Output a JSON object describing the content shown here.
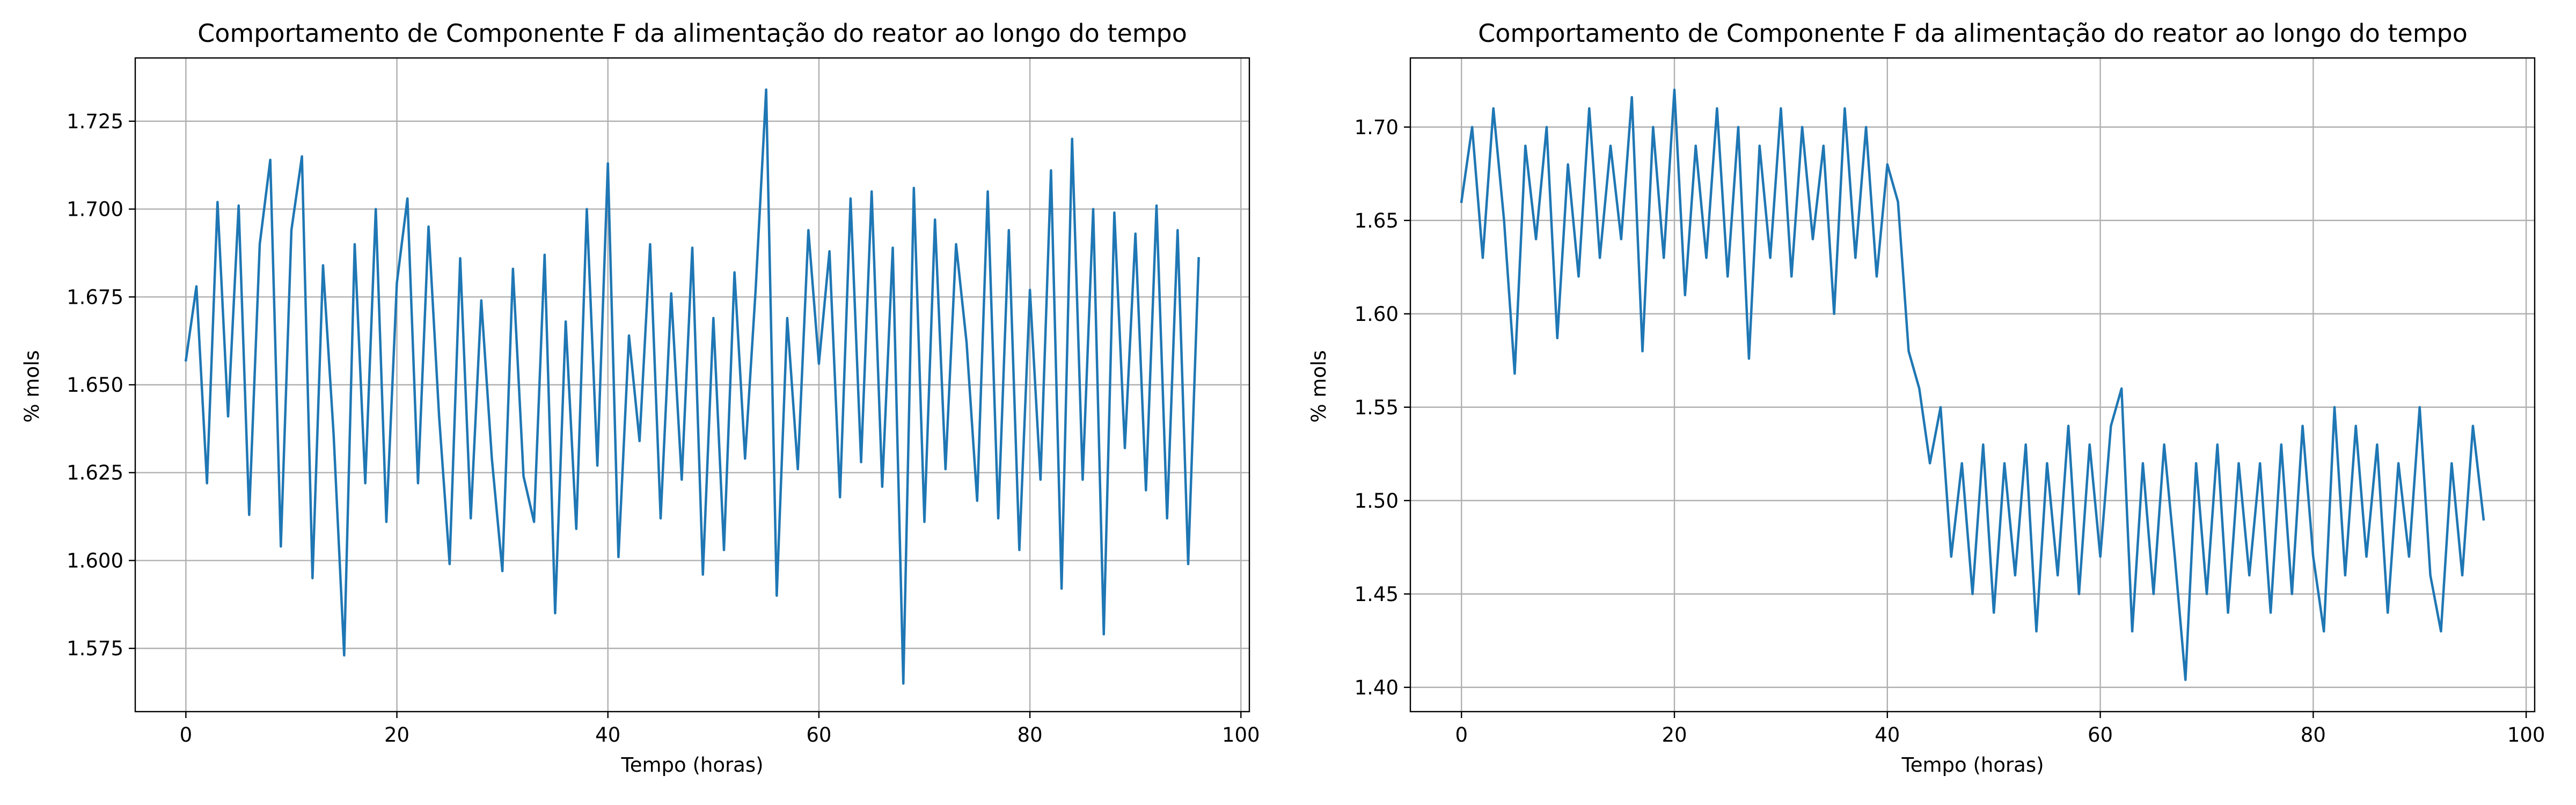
{
  "colors": {
    "series": "#1f77b4",
    "grid": "#b0b0b0",
    "axis": "#000000"
  },
  "chart_data": [
    {
      "type": "line",
      "title": "Comportamento de Componente F da alimentação do reator ao longo do tempo",
      "xlabel": "Tempo (horas)",
      "ylabel": "% mols",
      "xlim": [
        -4.8,
        100.8
      ],
      "ylim": [
        1.557,
        1.743
      ],
      "xticks": [
        0,
        20,
        40,
        60,
        80,
        100
      ],
      "yticks": [
        1.575,
        1.6,
        1.625,
        1.65,
        1.675,
        1.7,
        1.725
      ],
      "xtick_labels": [
        "0",
        "20",
        "40",
        "60",
        "80",
        "100"
      ],
      "ytick_labels": [
        "1.575",
        "1.600",
        "1.625",
        "1.650",
        "1.675",
        "1.700",
        "1.725"
      ],
      "grid": true,
      "series": [
        {
          "x": [
            0,
            1,
            2,
            3,
            4,
            5,
            6,
            7,
            8,
            9,
            10,
            11,
            12,
            13,
            14,
            15,
            16,
            17,
            18,
            19,
            20,
            21,
            22,
            23,
            24,
            25,
            26,
            27,
            28,
            29,
            30,
            31,
            32,
            33,
            34,
            35,
            36,
            37,
            38,
            39,
            40,
            41,
            42,
            43,
            44,
            45,
            46,
            47,
            48,
            49,
            50,
            51,
            52,
            53,
            54,
            55,
            56,
            57,
            58,
            59,
            60,
            61,
            62,
            63,
            64,
            65,
            66,
            67,
            68,
            69,
            70,
            71,
            72,
            73,
            74,
            75,
            76,
            77,
            78,
            79,
            80,
            81,
            82,
            83,
            84,
            85,
            86,
            87,
            88,
            89,
            90,
            91,
            92,
            93,
            94,
            95,
            96
          ],
          "y": [
            1.657,
            1.678,
            1.622,
            1.702,
            1.641,
            1.701,
            1.613,
            1.69,
            1.714,
            1.604,
            1.694,
            1.715,
            1.595,
            1.684,
            1.636,
            1.573,
            1.69,
            1.622,
            1.7,
            1.611,
            1.679,
            1.703,
            1.622,
            1.695,
            1.641,
            1.599,
            1.686,
            1.612,
            1.674,
            1.629,
            1.597,
            1.683,
            1.624,
            1.611,
            1.687,
            1.585,
            1.668,
            1.609,
            1.7,
            1.627,
            1.713,
            1.601,
            1.664,
            1.634,
            1.69,
            1.612,
            1.676,
            1.623,
            1.689,
            1.596,
            1.669,
            1.603,
            1.682,
            1.629,
            1.677,
            1.734,
            1.59,
            1.669,
            1.626,
            1.694,
            1.656,
            1.688,
            1.618,
            1.703,
            1.628,
            1.705,
            1.621,
            1.689,
            1.565,
            1.706,
            1.611,
            1.697,
            1.626,
            1.69,
            1.662,
            1.617,
            1.705,
            1.612,
            1.694,
            1.603,
            1.677,
            1.623,
            1.711,
            1.592,
            1.72,
            1.623,
            1.7,
            1.579,
            1.699,
            1.632,
            1.693,
            1.62,
            1.701,
            1.612,
            1.694,
            1.599,
            1.686
          ]
        }
      ]
    },
    {
      "type": "line",
      "title": "Comportamento de Componente F da alimentação do reator ao longo do tempo",
      "xlabel": "Tempo (horas)",
      "ylabel": "% mols",
      "xlim": [
        -4.8,
        100.8
      ],
      "ylim": [
        1.387,
        1.737
      ],
      "xticks": [
        0,
        20,
        40,
        60,
        80,
        100
      ],
      "yticks": [
        1.4,
        1.45,
        1.5,
        1.55,
        1.6,
        1.65,
        1.7
      ],
      "xtick_labels": [
        "0",
        "20",
        "40",
        "60",
        "80",
        "100"
      ],
      "ytick_labels": [
        "1.40",
        "1.45",
        "1.50",
        "1.55",
        "1.60",
        "1.65",
        "1.70"
      ],
      "grid": true,
      "series": [
        {
          "x": [
            0,
            1,
            2,
            3,
            4,
            5,
            6,
            7,
            8,
            9,
            10,
            11,
            12,
            13,
            14,
            15,
            16,
            17,
            18,
            19,
            20,
            21,
            22,
            23,
            24,
            25,
            26,
            27,
            28,
            29,
            30,
            31,
            32,
            33,
            34,
            35,
            36,
            37,
            38,
            39,
            40,
            41,
            42,
            43,
            44,
            45,
            46,
            47,
            48,
            49,
            50,
            51,
            52,
            53,
            54,
            55,
            56,
            57,
            58,
            59,
            60,
            61,
            62,
            63,
            64,
            65,
            66,
            67,
            68,
            69,
            70,
            71,
            72,
            73,
            74,
            75,
            76,
            77,
            78,
            79,
            80,
            81,
            82,
            83,
            84,
            85,
            86,
            87,
            88,
            89,
            90,
            91,
            92,
            93,
            94,
            95,
            96
          ],
          "y": [
            1.66,
            1.7,
            1.63,
            1.71,
            1.65,
            1.568,
            1.69,
            1.64,
            1.7,
            1.587,
            1.68,
            1.62,
            1.71,
            1.63,
            1.69,
            1.64,
            1.716,
            1.58,
            1.7,
            1.63,
            1.72,
            1.61,
            1.69,
            1.63,
            1.71,
            1.62,
            1.7,
            1.576,
            1.69,
            1.63,
            1.71,
            1.62,
            1.7,
            1.64,
            1.69,
            1.6,
            1.71,
            1.63,
            1.7,
            1.62,
            1.68,
            1.66,
            1.58,
            1.56,
            1.52,
            1.55,
            1.47,
            1.52,
            1.45,
            1.53,
            1.44,
            1.52,
            1.46,
            1.53,
            1.43,
            1.52,
            1.46,
            1.54,
            1.45,
            1.53,
            1.47,
            1.54,
            1.56,
            1.43,
            1.52,
            1.45,
            1.53,
            1.47,
            1.404,
            1.52,
            1.45,
            1.53,
            1.44,
            1.52,
            1.46,
            1.52,
            1.44,
            1.53,
            1.45,
            1.54,
            1.47,
            1.43,
            1.55,
            1.46,
            1.54,
            1.47,
            1.53,
            1.44,
            1.52,
            1.47,
            1.55,
            1.46,
            1.43,
            1.52,
            1.46,
            1.54,
            1.49
          ]
        }
      ]
    }
  ]
}
